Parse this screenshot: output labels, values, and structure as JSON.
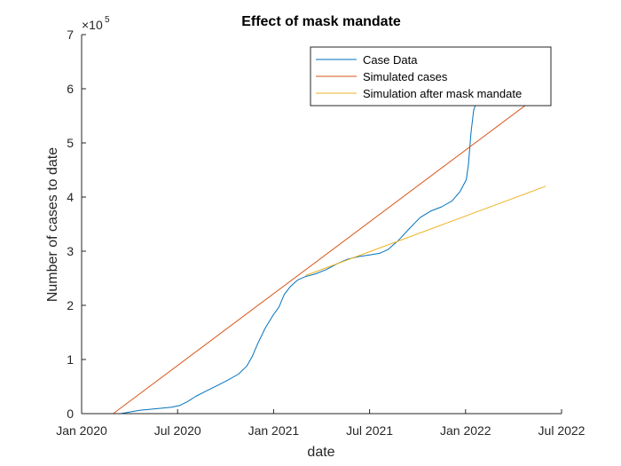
{
  "chart_data": {
    "type": "line",
    "title": "Effect of mask mandate",
    "xlabel": "date",
    "ylabel": "Number of cases to date",
    "x_ticks": [
      "Jan 2020",
      "Jul 2020",
      "Jan 2021",
      "Jul 2021",
      "Jan 2022",
      "Jul 2022"
    ],
    "x_range": [
      "2020-01-01",
      "2022-07-01"
    ],
    "ylim": [
      0,
      7
    ],
    "y_ticks": [
      "0",
      "1",
      "2",
      "3",
      "4",
      "5",
      "6",
      "7"
    ],
    "y_multiplier_base": "×10",
    "y_multiplier_exponent": "5",
    "grid": false,
    "legend_position": "top-right",
    "series": [
      {
        "name": "Case Data",
        "color": "#0072BD",
        "points": [
          [
            "2020-03-01",
            0.0
          ],
          [
            "2020-03-15",
            0.0
          ],
          [
            "2020-04-01",
            0.03
          ],
          [
            "2020-04-20",
            0.06
          ],
          [
            "2020-05-10",
            0.08
          ],
          [
            "2020-06-01",
            0.1
          ],
          [
            "2020-06-20",
            0.12
          ],
          [
            "2020-07-05",
            0.15
          ],
          [
            "2020-07-20",
            0.22
          ],
          [
            "2020-08-05",
            0.32
          ],
          [
            "2020-08-25",
            0.42
          ],
          [
            "2020-09-15",
            0.52
          ],
          [
            "2020-10-05",
            0.62
          ],
          [
            "2020-10-25",
            0.73
          ],
          [
            "2020-11-10",
            0.88
          ],
          [
            "2020-11-20",
            1.05
          ],
          [
            "2020-12-01",
            1.3
          ],
          [
            "2020-12-15",
            1.58
          ],
          [
            "2020-12-30",
            1.82
          ],
          [
            "2021-01-10",
            1.97
          ],
          [
            "2021-01-20",
            2.2
          ],
          [
            "2021-02-01",
            2.35
          ],
          [
            "2021-02-15",
            2.47
          ],
          [
            "2021-03-01",
            2.53
          ],
          [
            "2021-03-20",
            2.58
          ],
          [
            "2021-04-10",
            2.66
          ],
          [
            "2021-05-01",
            2.77
          ],
          [
            "2021-05-20",
            2.85
          ],
          [
            "2021-06-10",
            2.9
          ],
          [
            "2021-07-01",
            2.93
          ],
          [
            "2021-07-20",
            2.96
          ],
          [
            "2021-08-05",
            3.03
          ],
          [
            "2021-08-25",
            3.2
          ],
          [
            "2021-09-15",
            3.42
          ],
          [
            "2021-10-05",
            3.62
          ],
          [
            "2021-10-25",
            3.74
          ],
          [
            "2021-11-15",
            3.82
          ],
          [
            "2021-12-05",
            3.93
          ],
          [
            "2021-12-20",
            4.1
          ],
          [
            "2022-01-01",
            4.32
          ],
          [
            "2022-01-05",
            4.6
          ],
          [
            "2022-01-10",
            5.2
          ],
          [
            "2022-01-15",
            5.6
          ],
          [
            "2022-01-20",
            5.75
          ]
        ]
      },
      {
        "name": "Simulated cases",
        "color": "#D95319",
        "points": [
          [
            "2020-03-01",
            0.0
          ],
          [
            "2022-05-01",
            5.75
          ]
        ]
      },
      {
        "name": "Simulation after mask mandate",
        "color": "#EDB120",
        "points": [
          [
            "2021-03-01",
            2.55
          ],
          [
            "2022-06-01",
            4.2
          ]
        ]
      }
    ]
  }
}
